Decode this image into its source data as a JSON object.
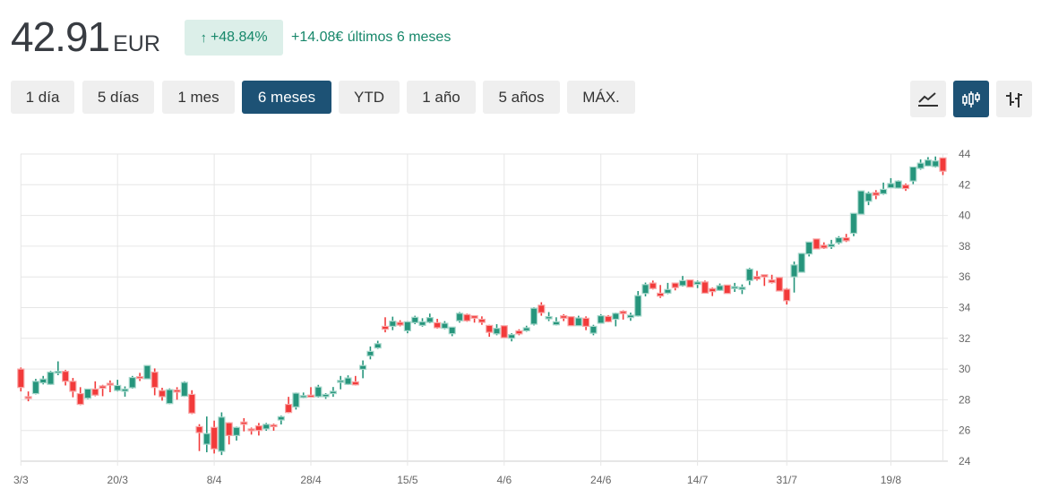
{
  "header": {
    "price": "42.91",
    "currency": "EUR",
    "change_pct": "+48.84%",
    "change_arrow_icon": "arrow-up-icon",
    "change_abs": "+14.08€ últimos 6 meses"
  },
  "ranges": [
    {
      "label": "1 día",
      "active": false
    },
    {
      "label": "5 días",
      "active": false
    },
    {
      "label": "1 mes",
      "active": false
    },
    {
      "label": "6 meses",
      "active": true
    },
    {
      "label": "YTD",
      "active": false
    },
    {
      "label": "1 año",
      "active": false
    },
    {
      "label": "5 años",
      "active": false
    },
    {
      "label": "MÁX.",
      "active": false
    }
  ],
  "chart_types": [
    {
      "icon": "line-chart-icon",
      "active": false
    },
    {
      "icon": "candlestick-icon",
      "active": true
    },
    {
      "icon": "ohlc-bars-icon",
      "active": false
    }
  ],
  "colors": {
    "up": "#26957c",
    "down": "#f23a3a",
    "active_button": "#1d5275",
    "positive_text": "#16876a"
  },
  "chart_data": {
    "type": "candlestick",
    "title": "",
    "ylim": [
      24,
      44
    ],
    "y_ticks": [
      "24",
      "26",
      "28",
      "30",
      "32",
      "34",
      "36",
      "38",
      "40",
      "42",
      "44"
    ],
    "x_ticks": [
      {
        "label": "3/3",
        "index": 0
      },
      {
        "label": "20/3",
        "index": 13
      },
      {
        "label": "8/4",
        "index": 26
      },
      {
        "label": "28/4",
        "index": 39
      },
      {
        "label": "15/5",
        "index": 52
      },
      {
        "label": "4/6",
        "index": 65
      },
      {
        "label": "24/6",
        "index": 78
      },
      {
        "label": "14/7",
        "index": 91
      },
      {
        "label": "31/7",
        "index": 103
      },
      {
        "label": "19/8",
        "index": 117
      }
    ],
    "grid": true,
    "ohlc": [
      [
        30.0,
        30.1,
        28.54,
        28.8
      ],
      [
        28.2,
        28.54,
        27.9,
        28.1
      ],
      [
        28.4,
        29.36,
        28.35,
        29.2
      ],
      [
        29.1,
        29.55,
        29.0,
        29.35
      ],
      [
        29.0,
        29.88,
        28.97,
        29.8
      ],
      [
        29.75,
        30.5,
        29.6,
        29.85
      ],
      [
        29.85,
        29.94,
        28.93,
        29.2
      ],
      [
        29.2,
        29.42,
        28.16,
        28.55
      ],
      [
        28.4,
        28.82,
        27.65,
        27.7
      ],
      [
        28.1,
        28.72,
        28.04,
        28.7
      ],
      [
        28.7,
        29.2,
        28.23,
        28.3
      ],
      [
        28.9,
        28.97,
        28.23,
        28.75
      ],
      [
        29.07,
        29.26,
        28.49,
        28.97
      ],
      [
        28.6,
        29.3,
        28.54,
        28.93
      ],
      [
        28.55,
        28.87,
        28.2,
        28.7
      ],
      [
        28.78,
        29.55,
        28.72,
        29.45
      ],
      [
        29.5,
        29.75,
        29.22,
        29.42
      ],
      [
        29.36,
        30.23,
        29.36,
        30.23
      ],
      [
        29.8,
        30.04,
        28.29,
        28.8
      ],
      [
        28.6,
        28.78,
        27.94,
        28.2
      ],
      [
        27.75,
        28.74,
        27.71,
        28.66
      ],
      [
        28.64,
        28.82,
        28.0,
        28.5
      ],
      [
        28.23,
        29.2,
        28.19,
        29.13
      ],
      [
        28.35,
        28.62,
        27.07,
        27.13
      ],
      [
        26.25,
        26.41,
        24.66,
        25.86
      ],
      [
        25.1,
        26.91,
        24.58,
        25.8
      ],
      [
        26.2,
        26.64,
        24.5,
        24.8
      ],
      [
        24.64,
        27.18,
        24.4,
        26.87
      ],
      [
        26.5,
        26.54,
        25.09,
        25.67
      ],
      [
        25.67,
        26.25,
        25.34,
        26.2
      ],
      [
        26.55,
        26.8,
        25.94,
        26.4
      ],
      [
        26.1,
        26.19,
        25.73,
        26.0
      ],
      [
        26.3,
        26.49,
        25.67,
        26.0
      ],
      [
        26.1,
        26.49,
        25.98,
        26.4
      ],
      [
        26.37,
        26.45,
        25.98,
        26.25
      ],
      [
        26.68,
        26.97,
        26.39,
        26.9
      ],
      [
        27.7,
        28.19,
        27.13,
        27.17
      ],
      [
        27.53,
        28.47,
        27.36,
        28.43
      ],
      [
        28.14,
        28.47,
        28.1,
        28.27
      ],
      [
        28.3,
        28.82,
        28.14,
        28.17
      ],
      [
        28.2,
        28.97,
        28.14,
        28.83
      ],
      [
        28.2,
        28.43,
        28.06,
        28.35
      ],
      [
        28.4,
        28.83,
        28.19,
        28.55
      ],
      [
        29.13,
        29.55,
        28.68,
        29.26
      ],
      [
        29.0,
        29.59,
        28.97,
        29.42
      ],
      [
        29.17,
        29.55,
        28.93,
        28.97
      ],
      [
        29.98,
        30.56,
        29.4,
        30.23
      ],
      [
        30.86,
        31.47,
        30.63,
        31.15
      ],
      [
        31.37,
        31.84,
        31.31,
        31.65
      ],
      [
        32.78,
        33.37,
        32.39,
        32.59
      ],
      [
        32.78,
        33.41,
        32.53,
        33.12
      ],
      [
        33.04,
        33.18,
        32.78,
        32.86
      ],
      [
        32.49,
        33.12,
        32.33,
        33.08
      ],
      [
        33.02,
        33.47,
        32.92,
        33.37
      ],
      [
        32.84,
        33.31,
        32.76,
        33.08
      ],
      [
        33.04,
        33.61,
        32.98,
        33.35
      ],
      [
        33.02,
        33.27,
        32.63,
        32.69
      ],
      [
        32.65,
        33.12,
        32.59,
        32.98
      ],
      [
        32.3,
        32.73,
        32.14,
        32.73
      ],
      [
        33.14,
        33.71,
        33.02,
        33.63
      ],
      [
        33.55,
        33.61,
        33.08,
        33.14
      ],
      [
        33.47,
        33.47,
        33.02,
        33.31
      ],
      [
        33.24,
        33.43,
        32.88,
        33.04
      ],
      [
        32.84,
        32.88,
        32.1,
        32.39
      ],
      [
        32.29,
        32.92,
        32.2,
        32.65
      ],
      [
        32.82,
        32.82,
        32.04,
        32.04
      ],
      [
        32.0,
        32.33,
        31.8,
        32.24
      ],
      [
        32.49,
        32.59,
        32.2,
        32.29
      ],
      [
        32.49,
        32.82,
        32.43,
        32.69
      ],
      [
        32.92,
        34.02,
        32.84,
        33.96
      ],
      [
        34.16,
        34.35,
        33.47,
        33.67
      ],
      [
        33.27,
        33.71,
        33.12,
        33.41
      ],
      [
        32.88,
        33.37,
        32.84,
        33.08
      ],
      [
        33.47,
        33.57,
        33.12,
        33.31
      ],
      [
        33.41,
        33.41,
        32.82,
        32.82
      ],
      [
        32.82,
        33.47,
        32.82,
        33.33
      ],
      [
        33.31,
        33.43,
        32.53,
        32.78
      ],
      [
        32.33,
        32.88,
        32.2,
        32.78
      ],
      [
        32.98,
        33.57,
        32.98,
        33.47
      ],
      [
        33.43,
        33.51,
        33.04,
        33.08
      ],
      [
        33.24,
        33.67,
        32.78,
        33.63
      ],
      [
        33.76,
        33.82,
        33.22,
        33.61
      ],
      [
        33.35,
        33.67,
        33.14,
        33.51
      ],
      [
        33.45,
        35.08,
        33.41,
        34.78
      ],
      [
        34.92,
        35.63,
        34.73,
        35.5
      ],
      [
        35.6,
        35.76,
        35.18,
        35.24
      ],
      [
        34.94,
        35.47,
        34.63,
        34.75
      ],
      [
        34.94,
        35.61,
        34.88,
        35.18
      ],
      [
        35.6,
        35.61,
        35.12,
        35.3
      ],
      [
        35.43,
        36.06,
        35.37,
        35.76
      ],
      [
        35.8,
        35.8,
        35.33,
        35.33
      ],
      [
        35.51,
        35.76,
        35.27,
        35.67
      ],
      [
        35.67,
        35.76,
        34.94,
        34.94
      ],
      [
        35.24,
        35.31,
        34.75,
        35.04
      ],
      [
        35.12,
        35.57,
        35.08,
        35.43
      ],
      [
        35.47,
        35.47,
        34.92,
        34.92
      ],
      [
        35.24,
        35.61,
        35.02,
        35.37
      ],
      [
        35.18,
        35.51,
        34.88,
        35.33
      ],
      [
        35.76,
        36.59,
        35.47,
        36.51
      ],
      [
        36.02,
        36.39,
        35.76,
        35.86
      ],
      [
        36.14,
        36.14,
        35.41,
        36.0
      ],
      [
        35.8,
        36.14,
        35.57,
        35.63
      ],
      [
        35.96,
        35.96,
        35.08,
        35.08
      ],
      [
        35.2,
        35.27,
        34.2,
        34.45
      ],
      [
        36.0,
        37.0,
        34.98,
        36.78
      ],
      [
        36.3,
        37.53,
        36.3,
        37.53
      ],
      [
        37.49,
        38.27,
        37.33,
        38.27
      ],
      [
        38.47,
        38.47,
        37.82,
        37.82
      ],
      [
        38.06,
        38.25,
        37.82,
        37.88
      ],
      [
        37.96,
        38.41,
        37.82,
        38.12
      ],
      [
        38.22,
        38.65,
        38.12,
        38.55
      ],
      [
        38.55,
        38.8,
        38.27,
        38.35
      ],
      [
        38.84,
        40.14,
        38.65,
        40.14
      ],
      [
        40.08,
        41.6,
        40.08,
        41.6
      ],
      [
        40.92,
        41.55,
        40.67,
        41.45
      ],
      [
        41.49,
        41.65,
        41.06,
        41.31
      ],
      [
        41.41,
        42.14,
        41.35,
        41.7
      ],
      [
        41.8,
        42.43,
        41.78,
        42.08
      ],
      [
        41.78,
        42.29,
        41.75,
        42.24
      ],
      [
        41.98,
        42.08,
        41.6,
        41.75
      ],
      [
        42.24,
        43.16,
        42.04,
        43.16
      ],
      [
        43.06,
        43.65,
        42.98,
        43.41
      ],
      [
        43.22,
        43.8,
        43.18,
        43.61
      ],
      [
        43.18,
        43.84,
        43.12,
        43.55
      ],
      [
        43.75,
        43.75,
        42.63,
        42.88
      ]
    ]
  }
}
